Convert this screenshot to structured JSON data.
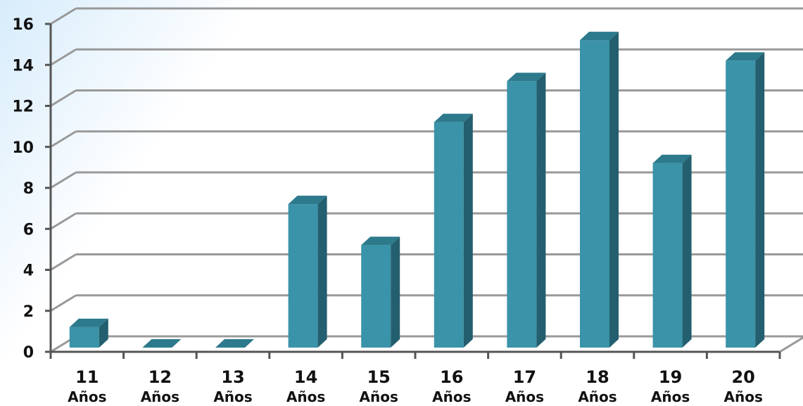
{
  "chart_data": {
    "type": "bar",
    "title": "",
    "xlabel": "",
    "ylabel": "",
    "categories": [
      [
        "11",
        "Años"
      ],
      [
        "12",
        "Años"
      ],
      [
        "13",
        "Años"
      ],
      [
        "14",
        "Años"
      ],
      [
        "15",
        "Años"
      ],
      [
        "16",
        "Años"
      ],
      [
        "17",
        "Años"
      ],
      [
        "18",
        "Años"
      ],
      [
        "19",
        "Años"
      ],
      [
        "20",
        "Años"
      ]
    ],
    "values": [
      1,
      0,
      0,
      7,
      5,
      11,
      13,
      15,
      9,
      14
    ],
    "ylim": [
      0,
      16
    ],
    "yticks": [
      "0",
      "2",
      "4",
      "6",
      "8",
      "10",
      "12",
      "14",
      "16"
    ],
    "grid": true,
    "three_d": true,
    "bar_color": "#3a93a8",
    "bar_side_color": "#235f6e",
    "bar_top_color": "#2c7a8c",
    "grid_color": "#999999",
    "background_gradient": [
      "#d7ecfb",
      "#ffffff"
    ]
  }
}
